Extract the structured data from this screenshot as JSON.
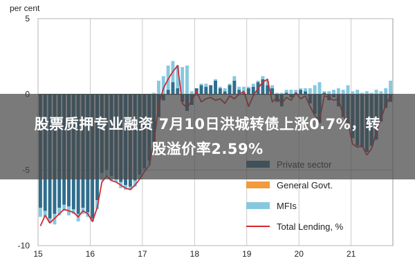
{
  "overlay": {
    "line1": "股票质押专业融资 7月10日洪城转债上涨0.7%，转",
    "line2": "股溢价率2.59%"
  },
  "colors": {
    "private_sector": "#2f6d8c",
    "general_govt": "#f39a3c",
    "mfis": "#86c9df",
    "total_lending": "#d8262e",
    "grid": "#bdbdbd",
    "zero_line": "#333333"
  },
  "chart_data": {
    "type": "bar",
    "title": "",
    "ylabel": "per cent",
    "xlabel": "",
    "ylim": [
      -10,
      5
    ],
    "yticks": [
      5,
      0,
      -5,
      -10
    ],
    "xlim": [
      15,
      21.8
    ],
    "xticks": [
      15,
      16,
      17,
      18,
      19,
      20,
      21
    ],
    "xtick_labels": [
      "15",
      "16",
      "17",
      "18",
      "19",
      "20",
      "21"
    ],
    "grid": true,
    "legend_position": "bottom-right",
    "series": [
      {
        "name": "Private sector",
        "kind": "bar",
        "values": [
          -7.5,
          -7.7,
          -8.2,
          -7.9,
          -7.5,
          -7.3,
          -7.4,
          -7.6,
          -7.9,
          -7.5,
          -7.8,
          -8.2,
          -7.0,
          -5.2,
          -5.0,
          -5.4,
          -5.6,
          -5.8,
          -6.0,
          -6.1,
          -5.7,
          -5.3,
          -4.9,
          -4.4,
          -3.2,
          -1.5,
          -0.4,
          0.3,
          0.8,
          0.4,
          -0.5,
          -1.1,
          -0.7,
          0.4,
          0.6,
          0.5,
          0.6,
          0.9,
          0.4,
          0.2,
          0.6,
          0.9,
          0.3,
          0.1,
          0.4,
          0.5,
          0.8,
          1.0,
          0.6,
          0.4,
          -0.5,
          -0.8,
          0.1,
          -0.2,
          0.1,
          0.3,
          0.2,
          -0.6,
          -1.3,
          -1.9,
          0.1,
          -0.4,
          -0.2,
          -0.8,
          -1.5,
          -2.0,
          -2.9,
          -3.4,
          -3.5,
          -3.8,
          -3.4,
          -3.0,
          -1.8,
          -0.9,
          -0.5
        ]
      },
      {
        "name": "General Govt.",
        "kind": "bar",
        "values": [
          0,
          0,
          0,
          0,
          0,
          0,
          0,
          0,
          0,
          0,
          0,
          0,
          0,
          0,
          0,
          0,
          0,
          0,
          0,
          0,
          0,
          0,
          0,
          0,
          0,
          0,
          0,
          0,
          0,
          0,
          0,
          0,
          0,
          0,
          0,
          0,
          0,
          0,
          0,
          0,
          0,
          0,
          0,
          0,
          0,
          0,
          0,
          0,
          0,
          0,
          0,
          0,
          0,
          0,
          0,
          0,
          0,
          0,
          0,
          0,
          0,
          0,
          0,
          0,
          0,
          0,
          0,
          0,
          0,
          0,
          0,
          0,
          0,
          0,
          0
        ]
      },
      {
        "name": "MFIs",
        "kind": "bar",
        "values": [
          -0.6,
          -0.4,
          -0.3,
          -0.7,
          -0.5,
          -0.4,
          -0.6,
          -0.3,
          -0.5,
          -0.4,
          -0.3,
          -0.2,
          -0.6,
          -0.5,
          -0.4,
          -0.3,
          -0.2,
          -0.4,
          -0.3,
          -0.2,
          -0.4,
          -0.3,
          -0.2,
          -0.3,
          0.1,
          0.9,
          1.2,
          1.6,
          1.4,
          1.5,
          1.8,
          1.9,
          0.2,
          -0.1,
          0.1,
          0.2,
          -0.1,
          0.1,
          0.1,
          0.2,
          0.1,
          0.3,
          0.2,
          0.4,
          0.1,
          0.2,
          0.1,
          0.2,
          0.3,
          0.2,
          0.1,
          0.1,
          0.2,
          0.3,
          0.2,
          0.1,
          0.2,
          0.4,
          0.6,
          0.8,
          0.1,
          0.2,
          0.3,
          0.4,
          0.3,
          0.6,
          0.2,
          0.3,
          0.1,
          0.2,
          0.1,
          0.3,
          0.2,
          0.4,
          0.9
        ]
      },
      {
        "name": "Total Lending, %",
        "kind": "line",
        "values": [
          -8.7,
          -8.0,
          -8.5,
          -8.2,
          -7.9,
          -7.6,
          -7.7,
          -7.8,
          -8.1,
          -7.7,
          -7.9,
          -8.4,
          -7.5,
          -5.8,
          -5.4,
          -5.7,
          -5.8,
          -6.0,
          -6.2,
          -6.3,
          -6.0,
          -5.6,
          -5.1,
          -4.7,
          -3.1,
          -0.7,
          0.4,
          1.0,
          1.5,
          1.9,
          -0.6,
          -0.9,
          -0.4,
          0.2,
          -0.5,
          -0.3,
          -0.2,
          -0.4,
          -0.3,
          -0.6,
          -0.1,
          -0.3,
          0.0,
          0.2,
          -0.8,
          -0.1,
          0.4,
          0.8,
          1.0,
          -0.5,
          -0.2,
          -0.6,
          -0.2,
          -0.4,
          0.1,
          -0.3,
          -0.1,
          -0.8,
          -1.4,
          -1.7,
          -0.1,
          -0.2,
          -0.4,
          -0.3,
          -1.4,
          -1.9,
          -3.3,
          -3.5,
          -3.4,
          -4.0,
          -3.6,
          -2.5,
          -1.6,
          -0.7,
          -0.1
        ]
      }
    ]
  }
}
